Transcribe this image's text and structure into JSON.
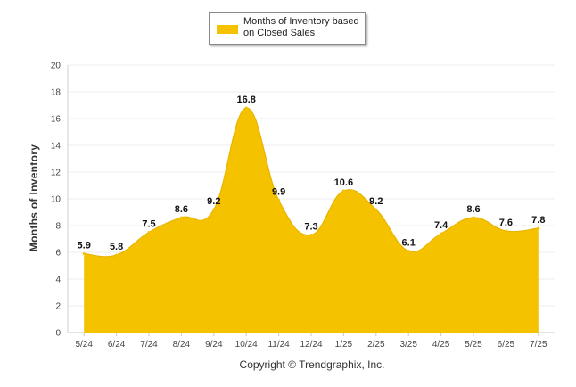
{
  "chart_data": {
    "type": "area",
    "categories": [
      "5/24",
      "6/24",
      "7/24",
      "8/24",
      "9/24",
      "10/24",
      "11/24",
      "12/24",
      "1/25",
      "2/25",
      "3/25",
      "4/25",
      "5/25",
      "6/25",
      "7/25"
    ],
    "series": [
      {
        "name": "Months of Inventory based on Closed Sales",
        "values": [
          5.9,
          5.8,
          7.5,
          8.6,
          9.2,
          16.8,
          9.9,
          7.3,
          10.6,
          9.2,
          6.1,
          7.4,
          8.6,
          7.6,
          7.8
        ]
      }
    ],
    "data_labels": [
      "5.9",
      "5.8",
      "7.5",
      "8.6",
      "9.2",
      "16.8",
      "9.9",
      "7.3",
      "10.6",
      "9.2",
      "6.1",
      "7.4",
      "8.6",
      "7.6",
      "7.8"
    ],
    "ylabel": "Months of Inventory",
    "xlabel": "",
    "ylim": [
      0,
      20
    ],
    "yticks": [
      0,
      2,
      4,
      6,
      8,
      10,
      12,
      14,
      16,
      18,
      20
    ],
    "grid": true,
    "legend_position": "top-center",
    "color": "#f5c200",
    "footer": "Copyright © Trendgraphix, Inc."
  }
}
